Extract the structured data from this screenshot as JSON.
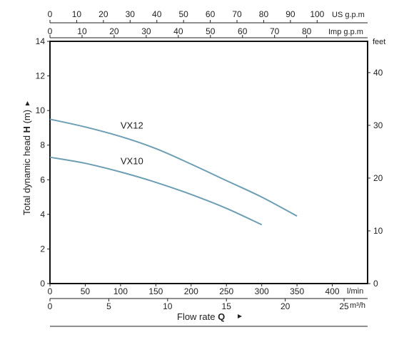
{
  "chart_data": {
    "type": "line",
    "ylabel_prefix": "Total dynamic head ",
    "ylabel_bold": "H",
    "ylabel_suffix": " (m)",
    "xlabel_prefix": "Flow rate ",
    "xlabel_bold": "Q",
    "x_unit": "l/min",
    "xlim": [
      0,
      450
    ],
    "ylim": [
      0,
      14
    ],
    "x_ticks": [
      0,
      50,
      100,
      150,
      200,
      250,
      300,
      350,
      400
    ],
    "y_ticks": [
      0,
      2,
      4,
      6,
      8,
      10,
      12,
      14
    ],
    "series": [
      {
        "name": "VX12",
        "x": [
          0,
          50,
          100,
          150,
          200,
          250,
          300,
          350
        ],
        "y": [
          9.5,
          9.05,
          8.5,
          7.8,
          6.9,
          5.95,
          5.0,
          3.9
        ]
      },
      {
        "name": "VX10",
        "x": [
          0,
          50,
          100,
          150,
          200,
          250,
          300
        ],
        "y": [
          7.3,
          6.95,
          6.45,
          5.85,
          5.15,
          4.35,
          3.4
        ]
      }
    ],
    "secondary_axes": {
      "us_gpm": {
        "unit": "US g.p.m",
        "ticks": [
          0,
          10,
          20,
          30,
          40,
          50,
          60,
          70,
          80,
          90,
          100
        ]
      },
      "imp_gpm": {
        "unit": "Imp g.p.m",
        "ticks": [
          0,
          10,
          20,
          30,
          40,
          50,
          60,
          70,
          80
        ]
      },
      "m3h": {
        "unit": "m³/h",
        "ticks": [
          0,
          5,
          10,
          15,
          20,
          25
        ]
      },
      "feet": {
        "unit": "feet",
        "ticks": [
          0,
          10,
          20,
          30,
          40
        ]
      }
    },
    "grid": false,
    "line_color": "#6d9eb4"
  }
}
